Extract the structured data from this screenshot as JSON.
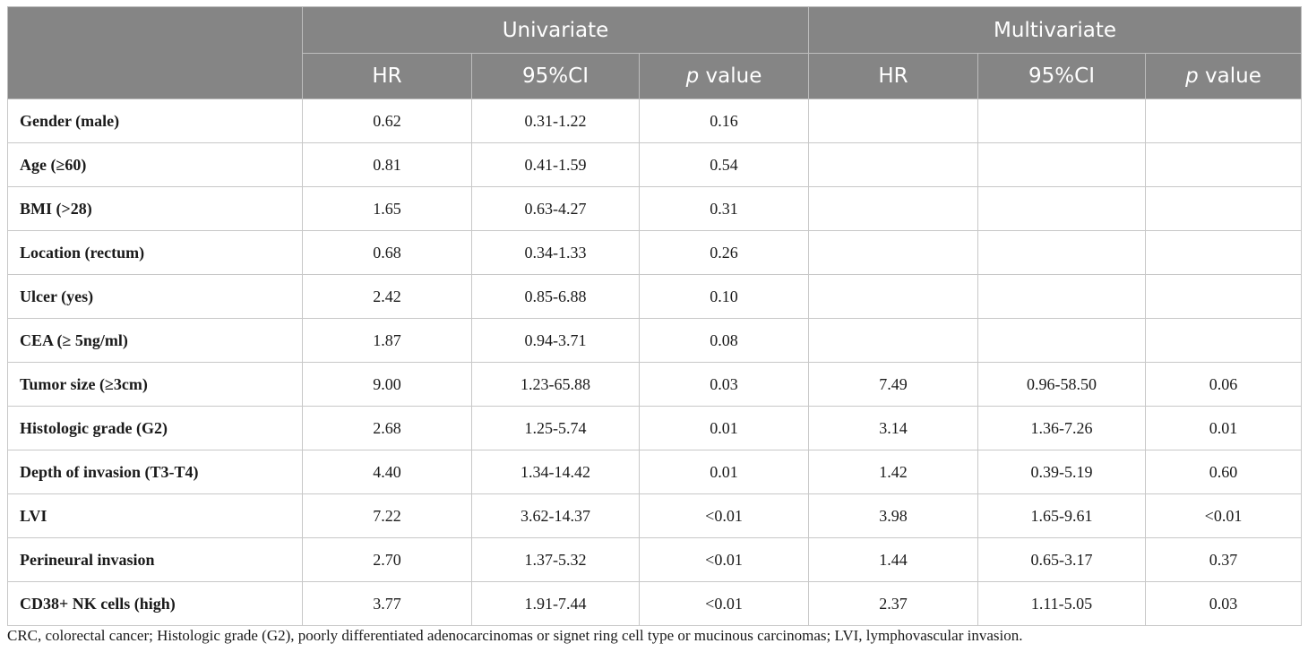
{
  "header": {
    "group1": "Univariate",
    "group2": "Multivariate",
    "hr": "HR",
    "ci": "95%CI",
    "p_italic": "p",
    "p_rest": " value"
  },
  "rows": [
    {
      "label": "Gender (male)",
      "u_hr": "0.62",
      "u_ci": "0.31-1.22",
      "u_p": "0.16",
      "m_hr": "",
      "m_ci": "",
      "m_p": ""
    },
    {
      "label": "Age (≥60)",
      "u_hr": "0.81",
      "u_ci": "0.41-1.59",
      "u_p": "0.54",
      "m_hr": "",
      "m_ci": "",
      "m_p": ""
    },
    {
      "label": "BMI (>28)",
      "u_hr": "1.65",
      "u_ci": "0.63-4.27",
      "u_p": "0.31",
      "m_hr": "",
      "m_ci": "",
      "m_p": ""
    },
    {
      "label": "Location (rectum)",
      "u_hr": "0.68",
      "u_ci": "0.34-1.33",
      "u_p": "0.26",
      "m_hr": "",
      "m_ci": "",
      "m_p": ""
    },
    {
      "label": "Ulcer (yes)",
      "u_hr": "2.42",
      "u_ci": "0.85-6.88",
      "u_p": "0.10",
      "m_hr": "",
      "m_ci": "",
      "m_p": ""
    },
    {
      "label": "CEA (≥ 5ng/ml)",
      "u_hr": "1.87",
      "u_ci": "0.94-3.71",
      "u_p": "0.08",
      "m_hr": "",
      "m_ci": "",
      "m_p": ""
    },
    {
      "label": "Tumor size (≥3cm)",
      "u_hr": "9.00",
      "u_ci": "1.23-65.88",
      "u_p": "0.03",
      "m_hr": "7.49",
      "m_ci": "0.96-58.50",
      "m_p": "0.06"
    },
    {
      "label": "Histologic grade (G2)",
      "u_hr": "2.68",
      "u_ci": "1.25-5.74",
      "u_p": "0.01",
      "m_hr": "3.14",
      "m_ci": "1.36-7.26",
      "m_p": "0.01"
    },
    {
      "label": "Depth of invasion (T3-T4)",
      "u_hr": "4.40",
      "u_ci": "1.34-14.42",
      "u_p": "0.01",
      "m_hr": "1.42",
      "m_ci": "0.39-5.19",
      "m_p": "0.60"
    },
    {
      "label": "LVI",
      "u_hr": "7.22",
      "u_ci": "3.62-14.37",
      "u_p": "<0.01",
      "m_hr": "3.98",
      "m_ci": "1.65-9.61",
      "m_p": "<0.01"
    },
    {
      "label": "Perineural invasion",
      "u_hr": "2.70",
      "u_ci": "1.37-5.32",
      "u_p": "<0.01",
      "m_hr": "1.44",
      "m_ci": "0.65-3.17",
      "m_p": "0.37"
    },
    {
      "label": "CD38+ NK cells (high)",
      "u_hr": "3.77",
      "u_ci": "1.91-7.44",
      "u_p": "<0.01",
      "m_hr": "2.37",
      "m_ci": "1.11-5.05",
      "m_p": "0.03"
    }
  ],
  "footnote": "CRC, colorectal cancer; Histologic grade (G2), poorly differentiated adenocarcinomas or signet ring cell type or mucinous carcinomas; LVI, lymphovascular invasion."
}
